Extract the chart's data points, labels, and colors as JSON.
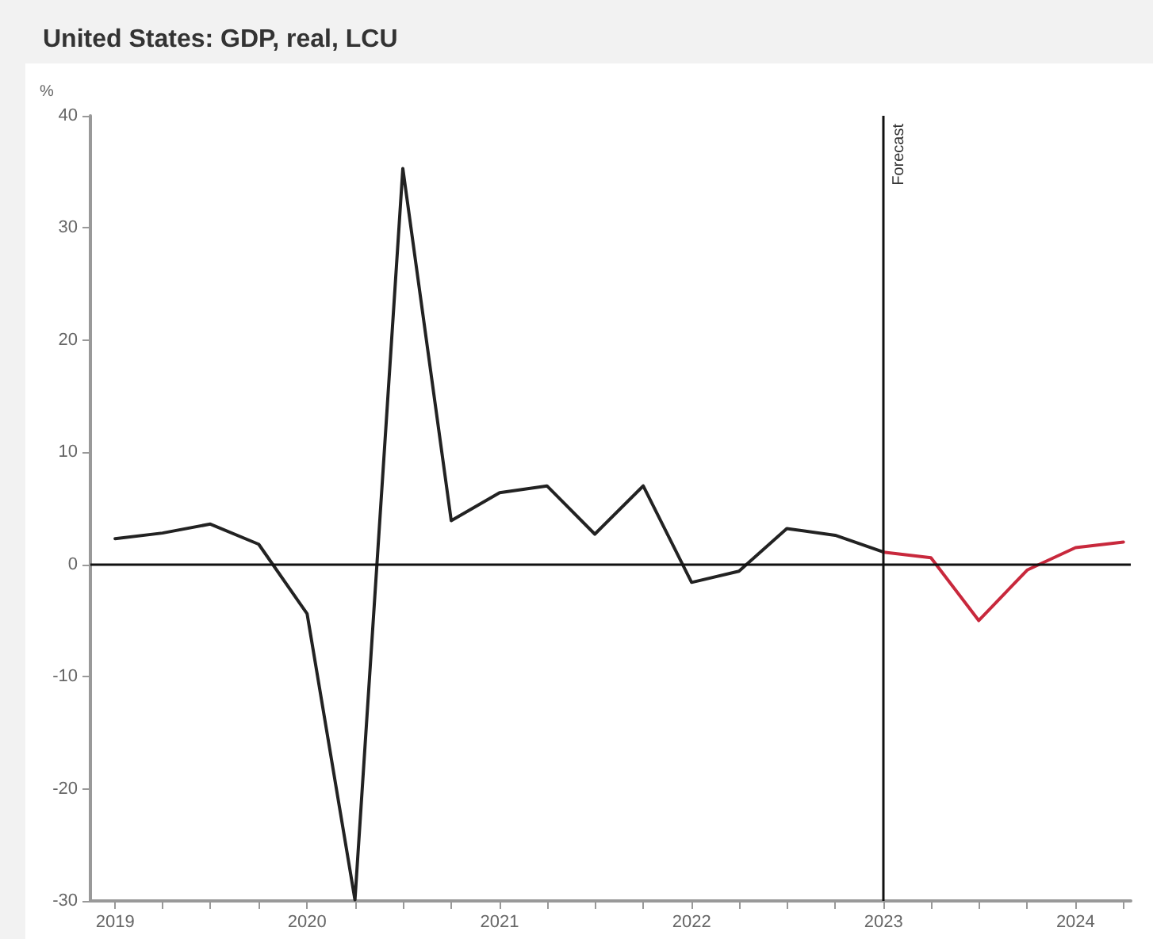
{
  "chart_data": {
    "type": "line",
    "title": "United States: GDP, real, LCU",
    "ylabel": "%",
    "xlim": [
      "2018-11-15",
      "2024-04-15"
    ],
    "ylim": [
      -30,
      40
    ],
    "yticks": [
      -30,
      -20,
      -10,
      0,
      10,
      20,
      30,
      40
    ],
    "xticks": [
      {
        "value": "2019",
        "label": "2019"
      },
      {
        "value": "2019-04",
        "label": null
      },
      {
        "value": "2019-07",
        "label": null
      },
      {
        "value": "2019-10",
        "label": null
      },
      {
        "value": "2020",
        "label": "2020"
      },
      {
        "value": "2020-04",
        "label": null
      },
      {
        "value": "2020-07",
        "label": null
      },
      {
        "value": "2020-10",
        "label": null
      },
      {
        "value": "2021",
        "label": "2021"
      },
      {
        "value": "2021-04",
        "label": null
      },
      {
        "value": "2021-07",
        "label": null
      },
      {
        "value": "2021-10",
        "label": null
      },
      {
        "value": "2022",
        "label": "2022"
      },
      {
        "value": "2022-04",
        "label": null
      },
      {
        "value": "2022-07",
        "label": null
      },
      {
        "value": "2022-10",
        "label": null
      },
      {
        "value": "2023",
        "label": "2023"
      },
      {
        "value": "2023-04",
        "label": null
      },
      {
        "value": "2023-07",
        "label": null
      },
      {
        "value": "2023-10",
        "label": null
      },
      {
        "value": "2024",
        "label": "2024"
      },
      {
        "value": "2024-04",
        "label": null
      }
    ],
    "grid": false,
    "marker": "none",
    "line_style": "solid",
    "series": [
      {
        "color": "#222222",
        "x": [
          "2019-01",
          "2019-04",
          "2019-07",
          "2019-10",
          "2020-01",
          "2020-04",
          "2020-07",
          "2020-10",
          "2021-01",
          "2021-04",
          "2021-07",
          "2021-10",
          "2022-01",
          "2022-04",
          "2022-07",
          "2022-10",
          "2023-01"
        ],
        "values": [
          2.3,
          2.8,
          3.6,
          1.8,
          -4.4,
          -29.9,
          35.3,
          3.9,
          6.4,
          7.0,
          2.7,
          7.0,
          -1.6,
          -0.6,
          3.2,
          2.6,
          1.1
        ]
      },
      {
        "color": "#c8283c",
        "x": [
          "2023-01",
          "2023-04",
          "2023-07",
          "2023-10",
          "2024-01",
          "2024-04"
        ],
        "values": [
          1.1,
          0.6,
          -5.0,
          -0.5,
          1.5,
          2.0
        ]
      }
    ],
    "ref_lines": [
      {
        "axis": "x",
        "value": "2023-01",
        "label": "Forecast",
        "color": "#111111"
      },
      {
        "axis": "y",
        "value": 0,
        "label": null,
        "color": "#111111"
      }
    ]
  }
}
